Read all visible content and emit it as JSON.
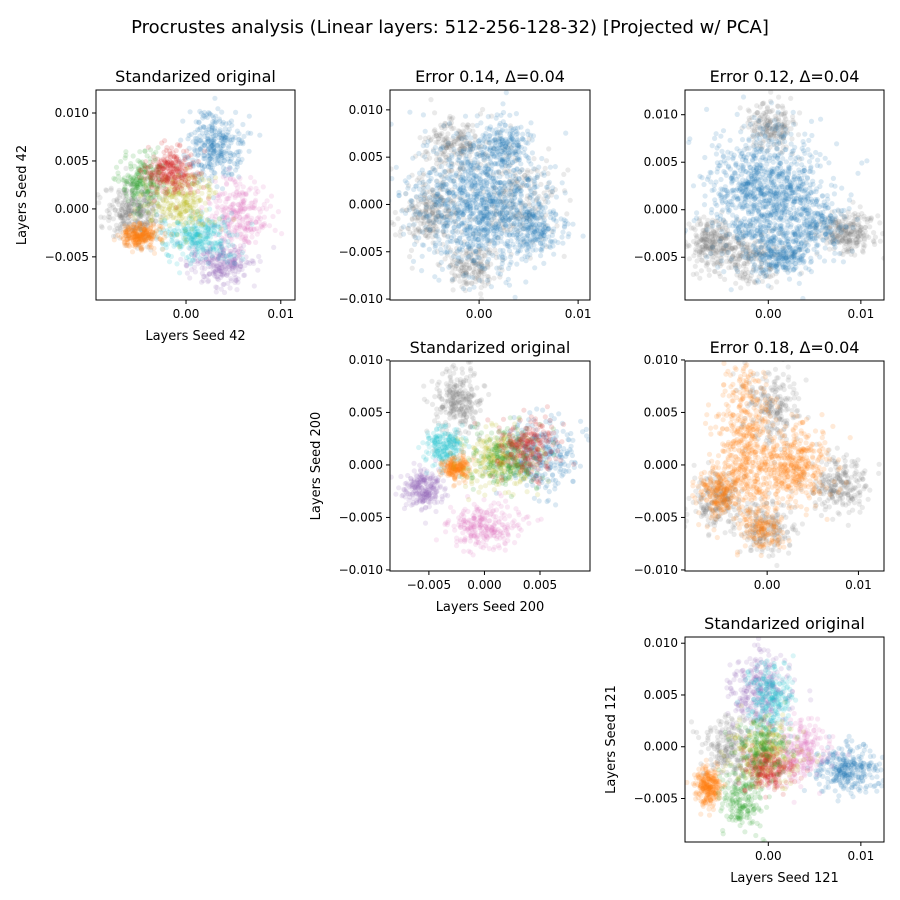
{
  "figure": {
    "title": "Procrustes analysis (Linear layers: 512-256-128-32) [Projected w/ PCA]"
  },
  "palette": {
    "blue": "#1f77b4",
    "orange": "#ff7f0e",
    "green": "#2ca02c",
    "red": "#d62728",
    "purple": "#9467bd",
    "olive": "#bcbd22",
    "pink": "#e377c2",
    "cyan": "#17becf",
    "gray": "#7f7f7f"
  },
  "chart_data": [
    {
      "id": "p00",
      "type": "scatter",
      "title": "Standarized original",
      "xlabel": "Layers Seed 42",
      "ylabel": "Layers Seed 42",
      "xlim": [
        -0.0095,
        0.0115
      ],
      "ylim": [
        -0.0095,
        0.0124
      ],
      "xticks": [
        0.0,
        0.01
      ],
      "xtick_labels": [
        "0.00",
        "0.01"
      ],
      "yticks": [
        -0.005,
        0.0,
        0.005,
        0.01
      ],
      "ytick_labels": [
        "−0.005",
        "0.000",
        "0.005",
        "0.010"
      ],
      "clusters": [
        {
          "color": "gray",
          "cx": -0.0055,
          "cy": -0.0003,
          "sx": 0.0015,
          "sy": 0.0015,
          "n": 320
        },
        {
          "color": "blue",
          "cx": 0.003,
          "cy": 0.0065,
          "sx": 0.0015,
          "sy": 0.0018,
          "n": 320
        },
        {
          "color": "pink",
          "cx": 0.0055,
          "cy": -0.0005,
          "sx": 0.0016,
          "sy": 0.0017,
          "n": 260
        },
        {
          "color": "purple",
          "cx": 0.0038,
          "cy": -0.0058,
          "sx": 0.0016,
          "sy": 0.0011,
          "n": 260
        },
        {
          "color": "cyan",
          "cx": 0.001,
          "cy": -0.003,
          "sx": 0.0019,
          "sy": 0.0012,
          "n": 300
        },
        {
          "color": "green",
          "cx": -0.0045,
          "cy": 0.003,
          "sx": 0.0013,
          "sy": 0.0015,
          "n": 220
        },
        {
          "color": "olive",
          "cx": -0.0005,
          "cy": 0.0008,
          "sx": 0.0018,
          "sy": 0.0017,
          "n": 280
        },
        {
          "color": "red",
          "cx": -0.0015,
          "cy": 0.0038,
          "sx": 0.0014,
          "sy": 0.0012,
          "n": 280
        },
        {
          "color": "orange",
          "cx": -0.0048,
          "cy": -0.0028,
          "sx": 0.0011,
          "sy": 0.0006,
          "n": 260
        }
      ]
    },
    {
      "id": "p01",
      "type": "scatter",
      "title": "Error 0.14, Δ=0.04",
      "xlabel": "",
      "ylabel": "",
      "xlim": [
        -0.009,
        0.0112
      ],
      "ylim": [
        -0.0101,
        0.0121
      ],
      "xticks": [
        0.0,
        0.01
      ],
      "xtick_labels": [
        "0.00",
        "0.01"
      ],
      "yticks": [
        -0.01,
        -0.005,
        0.0,
        0.005,
        0.01
      ],
      "ytick_labels": [
        "−0.010",
        "−0.005",
        "0.000",
        "0.005",
        "0.010"
      ],
      "clusters": [
        {
          "color": "gray",
          "cx": -0.005,
          "cy": -0.001,
          "sx": 0.0014,
          "sy": 0.0018,
          "n": 260
        },
        {
          "color": "gray",
          "cx": -0.0025,
          "cy": 0.0062,
          "sx": 0.0016,
          "sy": 0.0015,
          "n": 220
        },
        {
          "color": "gray",
          "cx": -0.0008,
          "cy": -0.0065,
          "sx": 0.0014,
          "sy": 0.0011,
          "n": 180
        },
        {
          "color": "gray",
          "cx": 0.004,
          "cy": 0.001,
          "sx": 0.0018,
          "sy": 0.0025,
          "n": 200
        },
        {
          "color": "blue",
          "cx": 0.0,
          "cy": 0.0,
          "sx": 0.0033,
          "sy": 0.0033,
          "n": 1100
        },
        {
          "color": "blue",
          "cx": 0.0025,
          "cy": 0.006,
          "sx": 0.0014,
          "sy": 0.0016,
          "n": 200
        },
        {
          "color": "blue",
          "cx": 0.0055,
          "cy": -0.0025,
          "sx": 0.0015,
          "sy": 0.0015,
          "n": 200
        }
      ]
    },
    {
      "id": "p02",
      "type": "scatter",
      "title": "Error 0.12, Δ=0.04",
      "xlabel": "",
      "ylabel": "",
      "xlim": [
        -0.009,
        0.0125
      ],
      "ylim": [
        -0.0095,
        0.0126
      ],
      "xticks": [
        0.0,
        0.01
      ],
      "xtick_labels": [
        "0.00",
        "0.01"
      ],
      "yticks": [
        -0.005,
        0.0,
        0.005,
        0.01
      ],
      "ytick_labels": [
        "−0.005",
        "0.000",
        "0.005",
        "0.010"
      ],
      "clusters": [
        {
          "color": "gray",
          "cx": -0.006,
          "cy": -0.0035,
          "sx": 0.0013,
          "sy": 0.0013,
          "n": 260
        },
        {
          "color": "gray",
          "cx": 0.0085,
          "cy": -0.0025,
          "sx": 0.0017,
          "sy": 0.0011,
          "n": 260
        },
        {
          "color": "gray",
          "cx": 0.0005,
          "cy": 0.0085,
          "sx": 0.0013,
          "sy": 0.0013,
          "n": 200
        },
        {
          "color": "gray",
          "cx": -0.002,
          "cy": -0.005,
          "sx": 0.0018,
          "sy": 0.0013,
          "n": 200
        },
        {
          "color": "blue",
          "cx": 0.0,
          "cy": 0.0015,
          "sx": 0.0032,
          "sy": 0.0035,
          "n": 1100
        },
        {
          "color": "blue",
          "cx": 0.0015,
          "cy": -0.005,
          "sx": 0.0016,
          "sy": 0.0011,
          "n": 220
        },
        {
          "color": "blue",
          "cx": 0.0055,
          "cy": -0.0015,
          "sx": 0.0014,
          "sy": 0.0013,
          "n": 160
        }
      ]
    },
    {
      "id": "p11",
      "type": "scatter",
      "title": "Standarized original",
      "xlabel": "Layers Seed 200",
      "ylabel": "Layers Seed 200",
      "xlim": [
        -0.0085,
        0.0095
      ],
      "ylim": [
        -0.0101,
        0.0099
      ],
      "xticks": [
        -0.005,
        0.0,
        0.005
      ],
      "xtick_labels": [
        "−0.005",
        "0.000",
        "0.005"
      ],
      "yticks": [
        -0.01,
        -0.005,
        0.0,
        0.005,
        0.01
      ],
      "ytick_labels": [
        "−0.010",
        "−0.005",
        "0.000",
        "0.005",
        "0.010"
      ],
      "clusters": [
        {
          "color": "gray",
          "cx": -0.0023,
          "cy": 0.0062,
          "sx": 0.0011,
          "sy": 0.0015,
          "n": 260
        },
        {
          "color": "blue",
          "cx": 0.005,
          "cy": 0.001,
          "sx": 0.0017,
          "sy": 0.0017,
          "n": 300
        },
        {
          "color": "pink",
          "cx": -0.0002,
          "cy": -0.0058,
          "sx": 0.0016,
          "sy": 0.0011,
          "n": 260
        },
        {
          "color": "purple",
          "cx": -0.0055,
          "cy": -0.0023,
          "sx": 0.0009,
          "sy": 0.0009,
          "n": 240
        },
        {
          "color": "cyan",
          "cx": -0.0035,
          "cy": 0.0018,
          "sx": 0.0009,
          "sy": 0.0009,
          "n": 200
        },
        {
          "color": "orange",
          "cx": -0.0025,
          "cy": -0.0003,
          "sx": 0.0006,
          "sy": 0.0006,
          "n": 200
        },
        {
          "color": "olive",
          "cx": 0.0015,
          "cy": 0.0005,
          "sx": 0.0017,
          "sy": 0.0015,
          "n": 280
        },
        {
          "color": "green",
          "cx": 0.002,
          "cy": 0.0008,
          "sx": 0.0015,
          "sy": 0.0015,
          "n": 220
        },
        {
          "color": "red",
          "cx": 0.004,
          "cy": 0.0015,
          "sx": 0.0015,
          "sy": 0.0014,
          "n": 240
        }
      ]
    },
    {
      "id": "p12",
      "type": "scatter",
      "title": "Error 0.18, Δ=0.04",
      "xlabel": "",
      "ylabel": "",
      "xlim": [
        -0.009,
        0.0128
      ],
      "ylim": [
        -0.0101,
        0.0099
      ],
      "xticks": [
        0.0,
        0.01
      ],
      "xtick_labels": [
        "0.00",
        "0.01"
      ],
      "yticks": [
        -0.01,
        -0.005,
        0.0,
        0.005,
        0.01
      ],
      "ytick_labels": [
        "−0.010",
        "−0.005",
        "0.000",
        "0.005",
        "0.010"
      ],
      "clusters": [
        {
          "color": "gray",
          "cx": 0.008,
          "cy": -0.002,
          "sx": 0.0018,
          "sy": 0.0013,
          "n": 240
        },
        {
          "color": "gray",
          "cx": 0.0005,
          "cy": 0.0055,
          "sx": 0.0015,
          "sy": 0.0018,
          "n": 220
        },
        {
          "color": "gray",
          "cx": -0.0055,
          "cy": -0.0035,
          "sx": 0.0014,
          "sy": 0.0013,
          "n": 200
        },
        {
          "color": "gray",
          "cx": 0.0,
          "cy": -0.006,
          "sx": 0.0015,
          "sy": 0.0012,
          "n": 180
        },
        {
          "color": "orange",
          "cx": -0.0025,
          "cy": 0.002,
          "sx": 0.0016,
          "sy": 0.0035,
          "n": 500
        },
        {
          "color": "orange",
          "cx": 0.0025,
          "cy": 0.0,
          "sx": 0.0022,
          "sy": 0.0018,
          "n": 450
        },
        {
          "color": "orange",
          "cx": -0.0055,
          "cy": -0.0025,
          "sx": 0.0011,
          "sy": 0.0011,
          "n": 200
        },
        {
          "color": "orange",
          "cx": -0.0005,
          "cy": -0.006,
          "sx": 0.0011,
          "sy": 0.0011,
          "n": 150
        }
      ]
    },
    {
      "id": "p22",
      "type": "scatter",
      "title": "Standarized original",
      "xlabel": "Layers Seed 121",
      "ylabel": "Layers Seed 121",
      "xlim": [
        -0.009,
        0.0125
      ],
      "ylim": [
        -0.0092,
        0.0106
      ],
      "xticks": [
        0.0,
        0.01
      ],
      "xtick_labels": [
        "0.00",
        "0.01"
      ],
      "yticks": [
        -0.005,
        0.0,
        0.005,
        0.01
      ],
      "ytick_labels": [
        "−0.005",
        "0.000",
        "0.005",
        "0.010"
      ],
      "clusters": [
        {
          "color": "blue",
          "cx": 0.0085,
          "cy": -0.0022,
          "sx": 0.0017,
          "sy": 0.0011,
          "n": 300
        },
        {
          "color": "orange",
          "cx": -0.0065,
          "cy": -0.0038,
          "sx": 0.0007,
          "sy": 0.0009,
          "n": 260
        },
        {
          "color": "green",
          "cx": -0.0028,
          "cy": -0.005,
          "sx": 0.0011,
          "sy": 0.0015,
          "n": 200
        },
        {
          "color": "purple",
          "cx": -0.0008,
          "cy": 0.0055,
          "sx": 0.0016,
          "sy": 0.0019,
          "n": 300
        },
        {
          "color": "cyan",
          "cx": 0.0002,
          "cy": 0.0045,
          "sx": 0.0013,
          "sy": 0.0017,
          "n": 240
        },
        {
          "color": "pink",
          "cx": 0.0035,
          "cy": -0.0005,
          "sx": 0.0017,
          "sy": 0.0015,
          "n": 240
        },
        {
          "color": "gray",
          "cx": -0.004,
          "cy": 0.0,
          "sx": 0.0015,
          "sy": 0.0015,
          "n": 220
        },
        {
          "color": "olive",
          "cx": -0.0005,
          "cy": -0.0005,
          "sx": 0.0019,
          "sy": 0.0016,
          "n": 260
        },
        {
          "color": "red",
          "cx": 0.0,
          "cy": -0.002,
          "sx": 0.0013,
          "sy": 0.0011,
          "n": 240
        },
        {
          "color": "green",
          "cx": -0.0005,
          "cy": 0.0,
          "sx": 0.0015,
          "sy": 0.0013,
          "n": 160
        }
      ]
    }
  ]
}
